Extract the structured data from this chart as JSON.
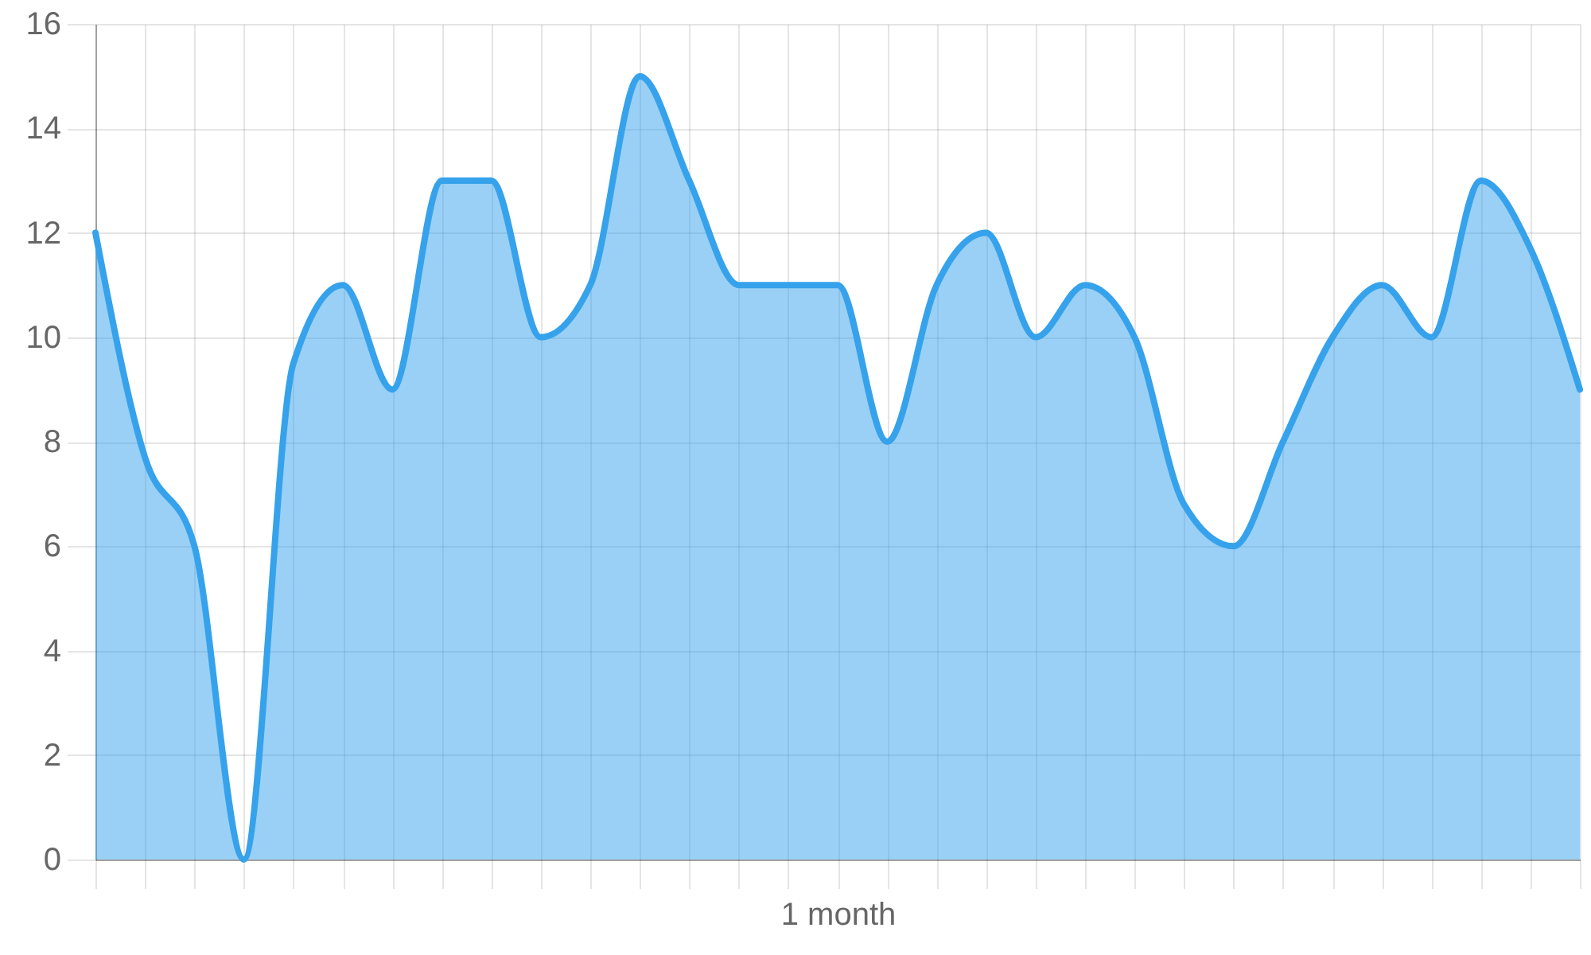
{
  "chart_data": {
    "type": "area",
    "xlabel": "1 month",
    "categories": [
      null,
      null,
      null,
      null,
      null,
      null,
      null,
      null,
      null,
      null,
      null,
      null,
      null,
      null,
      null,
      null,
      null,
      null,
      null,
      null,
      null,
      null,
      null,
      null,
      null,
      null,
      null,
      null,
      null,
      null,
      null
    ],
    "series": [
      {
        "color": "#36a2eb",
        "values": [
          12,
          7.7,
          6,
          0,
          9.5,
          11,
          9,
          13,
          13,
          10,
          11,
          15,
          13,
          11,
          11,
          11,
          8,
          11,
          12,
          10,
          11,
          10,
          6.8,
          6,
          8,
          10,
          11,
          10,
          13,
          11.7,
          9
        ]
      }
    ],
    "ylim": [
      0,
      16
    ],
    "yticks": [
      0,
      2,
      4,
      6,
      8,
      10,
      12,
      14,
      16
    ],
    "grid": true,
    "tick_labels": "y"
  }
}
